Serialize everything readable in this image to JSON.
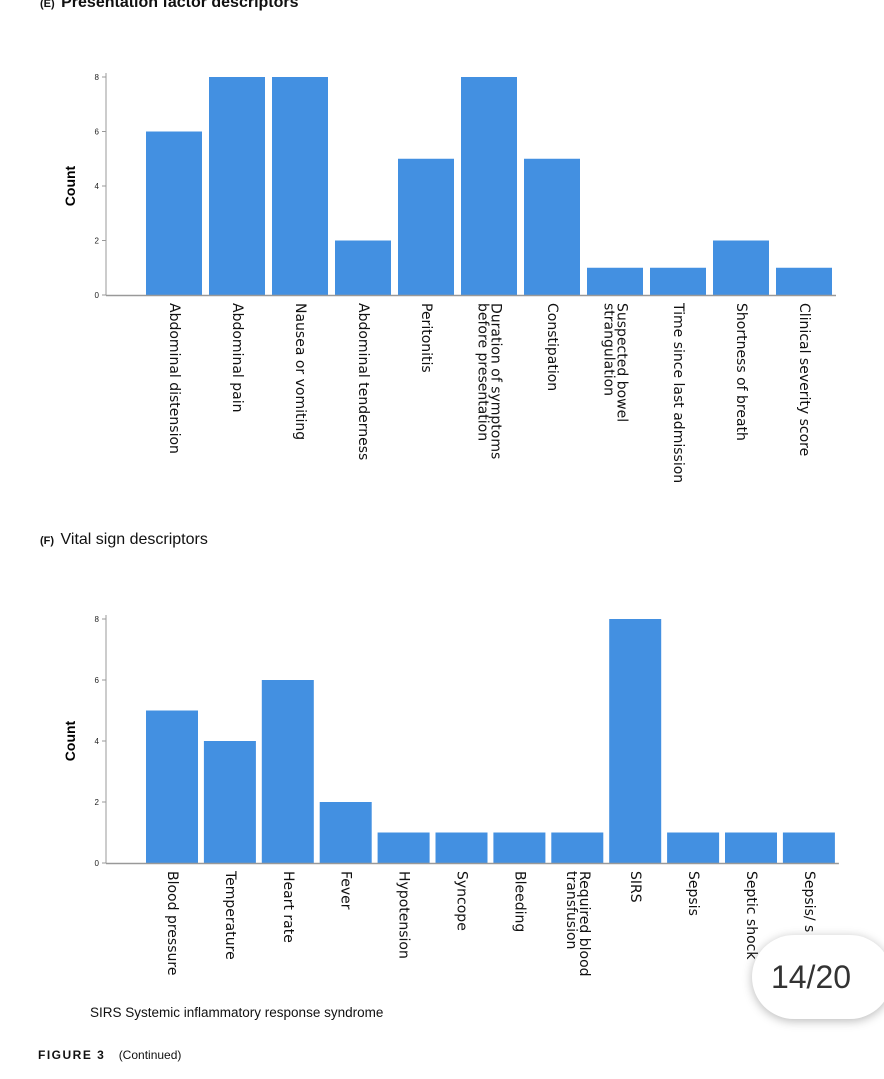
{
  "panels": {
    "e": {
      "tag": "(E)",
      "title": "Presentation factor descriptors"
    },
    "f": {
      "tag": "(F)",
      "title": "Vital sign descriptors"
    }
  },
  "chart_data": [
    {
      "type": "bar",
      "title": "(E) Presentation factor descriptors",
      "ylabel": "Count",
      "xlabel": "",
      "ylim": [
        0,
        8
      ],
      "yticks": [
        0,
        2,
        4,
        6,
        8
      ],
      "bar_color": "#4390e1",
      "categories": [
        "Abdominal distension",
        "Abdominal pain",
        "Nausea or vomiting",
        "Abdominal tenderness",
        "Peritonitis",
        "Duration of symptoms before presentation",
        "Constipation",
        "Suspected bowel strangulation",
        "Time since last admission",
        "Shortness of breath",
        "Clinical severity score"
      ],
      "category_lines": [
        [
          "Abdominal distension"
        ],
        [
          "Abdominal pain"
        ],
        [
          "Nausea or vomiting"
        ],
        [
          "Abdominal tenderness"
        ],
        [
          "Peritonitis"
        ],
        [
          "Duration of symptoms",
          "before presentation"
        ],
        [
          "Constipation"
        ],
        [
          "Suspected bowel",
          "strangulation"
        ],
        [
          "Time since last admission"
        ],
        [
          "Shortness of breath"
        ],
        [
          "Clinical severity score"
        ]
      ],
      "values": [
        6,
        8,
        8,
        2,
        5,
        8,
        5,
        1,
        1,
        2,
        1
      ]
    },
    {
      "type": "bar",
      "title": "(F) Vital sign descriptors",
      "ylabel": "Count",
      "xlabel": "",
      "ylim": [
        0,
        8
      ],
      "yticks": [
        0,
        2,
        4,
        6,
        8
      ],
      "bar_color": "#4390e1",
      "categories": [
        "Blood pressure",
        "Temperature",
        "Heart rate",
        "Fever",
        "Hypotension",
        "Syncope",
        "Bleeding",
        "Required blood transfusion",
        "SIRS",
        "Sepsis",
        "Septic shock",
        "Sepsis/ s"
      ],
      "category_lines": [
        [
          "Blood pressure"
        ],
        [
          "Temperature"
        ],
        [
          "Heart rate"
        ],
        [
          "Fever"
        ],
        [
          "Hypotension"
        ],
        [
          "Syncope"
        ],
        [
          "Bleeding"
        ],
        [
          "Required blood",
          "transfusion"
        ],
        [
          "SIRS"
        ],
        [
          "Sepsis"
        ],
        [
          "Septic shock"
        ],
        [
          "Sepsis/ s"
        ]
      ],
      "values": [
        5,
        4,
        6,
        2,
        1,
        1,
        1,
        1,
        8,
        1,
        1,
        1
      ]
    }
  ],
  "footnote": "SIRS Systemic inflammatory response syndrome",
  "caption": {
    "figure": "FIGURE 3",
    "text": "(Continued)"
  },
  "page_indicator": "14/20"
}
